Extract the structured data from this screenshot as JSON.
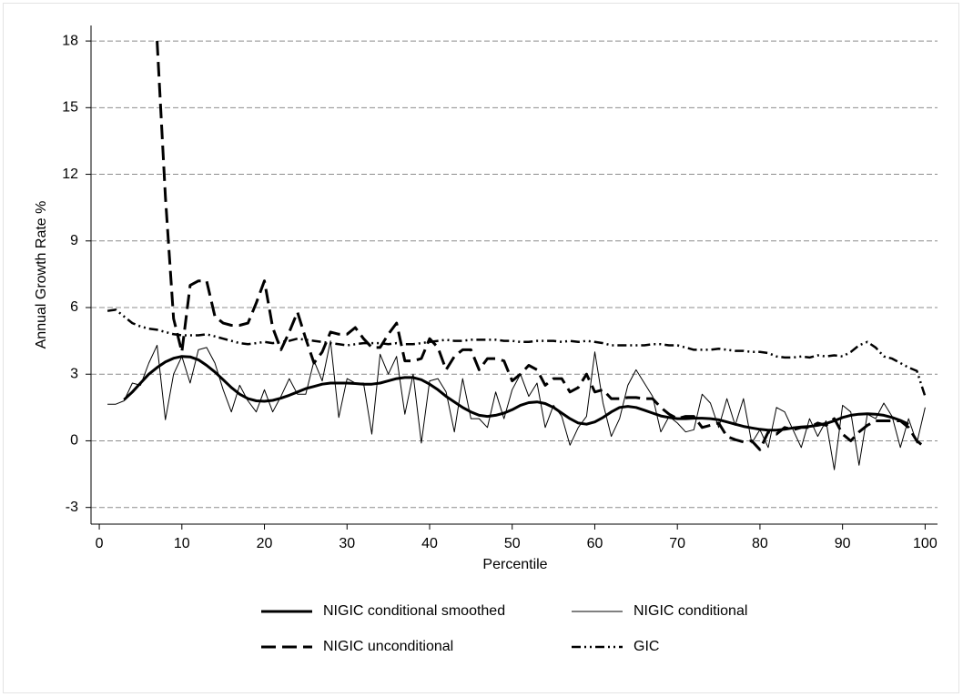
{
  "chart_data": {
    "type": "line",
    "xlabel": "Percentile",
    "ylabel": "Annual Growth Rate %",
    "xlim": [
      -1,
      101.5
    ],
    "ylim": [
      -3.75,
      18.7
    ],
    "xticks": [
      0,
      10,
      20,
      30,
      40,
      50,
      60,
      70,
      80,
      90,
      100
    ],
    "yticks": [
      -3,
      0,
      3,
      6,
      9,
      12,
      15,
      18
    ],
    "grid": true,
    "legend": "bottom",
    "x": [
      1,
      2,
      3,
      4,
      5,
      6,
      7,
      8,
      9,
      10,
      11,
      12,
      13,
      14,
      15,
      16,
      17,
      18,
      19,
      20,
      21,
      22,
      23,
      24,
      25,
      26,
      27,
      28,
      29,
      30,
      31,
      32,
      33,
      34,
      35,
      36,
      37,
      38,
      39,
      40,
      41,
      42,
      43,
      44,
      45,
      46,
      47,
      48,
      49,
      50,
      51,
      52,
      53,
      54,
      55,
      56,
      57,
      58,
      59,
      60,
      61,
      62,
      63,
      64,
      65,
      66,
      67,
      68,
      69,
      70,
      71,
      72,
      73,
      74,
      75,
      76,
      77,
      78,
      79,
      80,
      81,
      82,
      83,
      84,
      85,
      86,
      87,
      88,
      89,
      90,
      91,
      92,
      93,
      94,
      95,
      96,
      97,
      98,
      99,
      100
    ],
    "series": [
      {
        "name": "NIGIC conditional smoothed",
        "color": "#000000",
        "style": "solid-thick",
        "values": [
          null,
          null,
          1.85,
          2.2,
          2.6,
          3.0,
          3.3,
          3.55,
          3.72,
          3.8,
          3.78,
          3.65,
          3.4,
          3.1,
          2.75,
          2.4,
          2.1,
          1.9,
          1.8,
          1.78,
          1.82,
          1.92,
          2.05,
          2.2,
          2.35,
          2.45,
          2.55,
          2.6,
          2.6,
          2.6,
          2.58,
          2.55,
          2.55,
          2.6,
          2.7,
          2.8,
          2.85,
          2.85,
          2.75,
          2.55,
          2.3,
          2.0,
          1.75,
          1.5,
          1.3,
          1.15,
          1.1,
          1.15,
          1.25,
          1.4,
          1.6,
          1.72,
          1.75,
          1.68,
          1.5,
          1.25,
          1.0,
          0.8,
          0.75,
          0.85,
          1.05,
          1.3,
          1.5,
          1.55,
          1.5,
          1.38,
          1.25,
          1.12,
          1.05,
          1.0,
          1.0,
          1.02,
          1.02,
          1.0,
          0.95,
          0.85,
          0.75,
          0.65,
          0.58,
          0.52,
          0.48,
          0.48,
          0.52,
          0.58,
          0.62,
          0.65,
          0.7,
          0.78,
          0.9,
          1.05,
          1.15,
          1.2,
          1.22,
          1.2,
          1.15,
          1.05,
          0.92,
          0.75,
          null,
          null
        ]
      },
      {
        "name": "NIGIC conditional",
        "color": "#000000",
        "style": "solid-thin",
        "values": [
          1.65,
          1.65,
          1.8,
          2.6,
          2.5,
          3.5,
          4.3,
          0.95,
          3.0,
          3.8,
          2.6,
          4.1,
          4.2,
          3.5,
          2.3,
          1.3,
          2.5,
          1.8,
          1.3,
          2.3,
          1.3,
          2.0,
          2.8,
          2.1,
          2.1,
          3.6,
          2.7,
          4.5,
          1.05,
          2.8,
          2.6,
          2.6,
          0.3,
          3.9,
          3.0,
          3.8,
          1.2,
          3.0,
          -0.1,
          2.7,
          2.8,
          2.2,
          0.4,
          2.8,
          1.0,
          1.0,
          0.6,
          2.2,
          1.0,
          2.3,
          3.0,
          2.0,
          2.6,
          0.6,
          1.6,
          1.1,
          -0.2,
          0.6,
          1.1,
          4.0,
          1.7,
          0.2,
          1.0,
          2.5,
          3.2,
          2.6,
          2.0,
          0.4,
          1.1,
          0.8,
          0.4,
          0.5,
          2.1,
          1.7,
          0.6,
          1.9,
          0.7,
          1.9,
          -0.1,
          0.5,
          -0.3,
          1.5,
          1.3,
          0.5,
          -0.3,
          1.0,
          0.2,
          0.9,
          -1.3,
          1.6,
          1.3,
          -1.1,
          1.2,
          1.0,
          1.7,
          1.1,
          -0.3,
          1.0,
          -0.1,
          1.5
        ]
      },
      {
        "name": "NIGIC unconditional",
        "color": "#000000",
        "style": "dashed",
        "values": [
          null,
          null,
          null,
          null,
          null,
          null,
          18,
          11,
          5.5,
          4.0,
          7.0,
          7.2,
          7.2,
          5.6,
          5.3,
          5.2,
          5.2,
          5.3,
          6.2,
          7.2,
          5.1,
          4.1,
          4.9,
          5.8,
          4.6,
          3.5,
          4.0,
          4.9,
          4.8,
          4.8,
          5.1,
          4.6,
          4.2,
          4.2,
          4.8,
          5.3,
          3.6,
          3.6,
          3.7,
          4.6,
          4.2,
          3.2,
          3.8,
          4.1,
          4.1,
          3.2,
          3.7,
          3.7,
          3.6,
          2.7,
          3.0,
          3.4,
          3.2,
          2.5,
          2.8,
          2.8,
          2.2,
          2.4,
          3.0,
          2.2,
          2.3,
          1.9,
          1.9,
          1.95,
          1.95,
          1.9,
          1.9,
          1.5,
          1.2,
          1.0,
          1.1,
          1.1,
          0.6,
          0.7,
          0.8,
          0.2,
          0.05,
          -0.05,
          0.0,
          -0.4,
          0.4,
          0.3,
          0.6,
          0.5,
          0.6,
          0.6,
          0.8,
          0.7,
          1.0,
          0.3,
          0.0,
          0.4,
          0.7,
          0.9,
          0.9,
          0.9,
          0.9,
          0.6,
          0.0,
          -0.3
        ]
      },
      {
        "name": "GIC",
        "color": "#000000",
        "style": "dash-dot-dot",
        "values": [
          5.85,
          5.9,
          5.6,
          5.3,
          5.15,
          5.05,
          5.0,
          4.9,
          4.8,
          4.75,
          4.75,
          4.75,
          4.8,
          4.7,
          4.6,
          4.5,
          4.4,
          4.35,
          4.4,
          4.45,
          4.4,
          4.45,
          4.5,
          4.6,
          4.55,
          4.5,
          4.45,
          4.4,
          4.35,
          4.3,
          4.35,
          4.4,
          4.4,
          4.4,
          4.35,
          4.4,
          4.35,
          4.35,
          4.4,
          4.45,
          4.5,
          4.55,
          4.5,
          4.5,
          4.55,
          4.55,
          4.55,
          4.55,
          4.5,
          4.5,
          4.45,
          4.45,
          4.5,
          4.5,
          4.5,
          4.45,
          4.5,
          4.45,
          4.5,
          4.45,
          4.4,
          4.3,
          4.3,
          4.3,
          4.3,
          4.3,
          4.35,
          4.35,
          4.3,
          4.3,
          4.2,
          4.1,
          4.1,
          4.1,
          4.15,
          4.1,
          4.05,
          4.05,
          4.0,
          4.0,
          3.95,
          3.8,
          3.75,
          3.75,
          3.8,
          3.75,
          3.85,
          3.8,
          3.85,
          3.8,
          4.0,
          4.3,
          4.45,
          4.2,
          3.8,
          3.7,
          3.5,
          3.3,
          3.15,
          2.0
        ]
      }
    ]
  }
}
